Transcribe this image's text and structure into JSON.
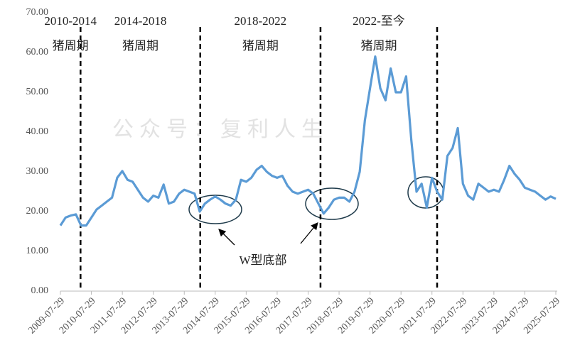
{
  "chart_data": {
    "type": "line",
    "watermark": "公众号：复利人生",
    "annotation": "W型底部",
    "periods": [
      {
        "label": "2010-2014",
        "sub": "猪周期"
      },
      {
        "label": "2014-2018",
        "sub": "猪周期"
      },
      {
        "label": "2018-2022",
        "sub": "猪周期"
      },
      {
        "label": "2022-至今",
        "sub": "猪周期"
      }
    ],
    "dividers": [
      3.9,
      27.1,
      50.4,
      73
    ],
    "categories": [
      "2009-07-29",
      null,
      null,
      null,
      null,
      null,
      "2010-07-29",
      null,
      null,
      null,
      null,
      null,
      "2011-07-29",
      null,
      null,
      null,
      null,
      null,
      "2012-07-29",
      null,
      null,
      null,
      null,
      null,
      "2013-07-29",
      null,
      null,
      null,
      null,
      null,
      "2014-07-29",
      null,
      null,
      null,
      null,
      null,
      "2015-07-29",
      null,
      null,
      null,
      null,
      null,
      "2016-07-29",
      null,
      null,
      null,
      null,
      null,
      "2017-07-29",
      null,
      null,
      null,
      null,
      null,
      "2018-07-29",
      null,
      null,
      null,
      null,
      null,
      "2019-07-29",
      null,
      null,
      null,
      null,
      null,
      "2020-07-29",
      null,
      null,
      null,
      null,
      null,
      "2021-07-29",
      null,
      null,
      null,
      null,
      null,
      "2022-07-29",
      null,
      null,
      null,
      null,
      null,
      "2023-07-29",
      null,
      null,
      null,
      null,
      null,
      "2024-07-29",
      null,
      null,
      null,
      null,
      null,
      "2025-07-29"
    ],
    "series": [
      {
        "color": "#5b9bd5",
        "values": [
          16.5,
          18.5,
          19,
          19.3,
          16.5,
          16.5,
          18.5,
          20.5,
          21.5,
          22.5,
          23.5,
          28.5,
          30.2,
          28,
          27.5,
          25.5,
          23.5,
          22.5,
          24,
          23.5,
          26.8,
          22,
          22.5,
          24.5,
          25.5,
          25,
          24.5,
          20,
          22,
          23,
          23.8,
          23,
          22,
          21.5,
          23,
          28,
          27.5,
          28.5,
          30.5,
          31.5,
          30,
          29,
          28.5,
          29,
          26.5,
          25,
          24.5,
          25,
          25.5,
          24.5,
          22,
          19.5,
          21,
          23,
          23.5,
          23.5,
          22.5,
          25,
          30,
          43,
          51,
          59,
          51,
          48,
          56,
          50,
          50,
          54,
          38,
          25,
          27,
          21,
          28.5,
          25,
          23,
          34,
          36,
          41,
          27,
          24,
          23,
          27,
          26,
          25,
          25.5,
          25,
          28,
          31.5,
          29.5,
          28,
          26,
          25.5,
          25,
          24,
          23,
          23.8,
          23.2
        ]
      }
    ],
    "ylim": [
      0,
      70
    ],
    "yticks": [
      {
        "value": 0,
        "label": "0.00"
      },
      {
        "value": 10,
        "label": "10.00"
      },
      {
        "value": 20,
        "label": "20.00"
      },
      {
        "value": 30,
        "label": "30.00"
      },
      {
        "value": 40,
        "label": "40.00"
      },
      {
        "value": 50,
        "label": "50.00"
      },
      {
        "value": 60,
        "label": "60.00"
      },
      {
        "value": 70,
        "label": "70.00"
      }
    ]
  }
}
